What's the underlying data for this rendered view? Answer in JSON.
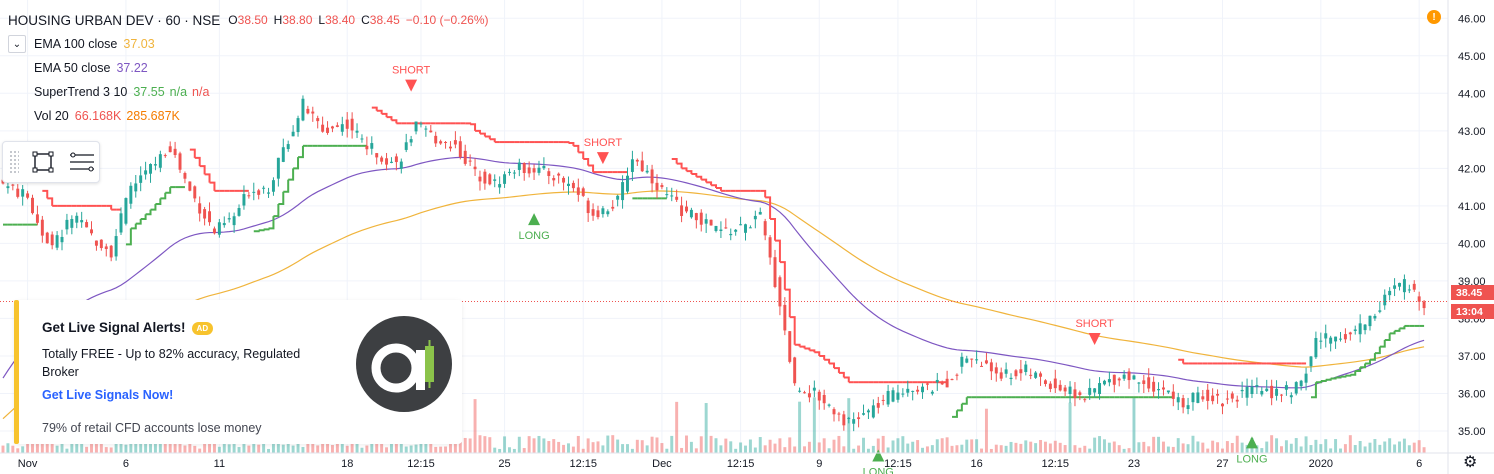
{
  "header": {
    "symbol": "HOUSING URBAN DEV · 60 · NSE",
    "ohlc": [
      {
        "k": "O",
        "v": "38.50"
      },
      {
        "k": "H",
        "v": "38.80"
      },
      {
        "k": "L",
        "v": "38.40"
      },
      {
        "k": "C",
        "v": "38.45"
      }
    ],
    "change": "−0.10 (−0.26%)"
  },
  "indicators": [
    {
      "name": "EMA 100 close",
      "values": [
        "37.03"
      ],
      "colors": [
        "#f0b43c"
      ]
    },
    {
      "name": "EMA 50 close",
      "values": [
        "37.22"
      ],
      "colors": [
        "#7e57c2"
      ]
    },
    {
      "name": "SuperTrend 3 10",
      "values": [
        "37.55",
        "n/a",
        "n/a"
      ],
      "colors": [
        "#4caf50",
        "#4caf50",
        "#ef5350"
      ]
    },
    {
      "name": "Vol 20",
      "values": [
        "66.168K",
        "285.687K"
      ],
      "colors": [
        "#ef5350",
        "#f57c00"
      ]
    }
  ],
  "promo": {
    "title": "Get Live Signal Alerts!",
    "badge": "AD",
    "body": "Totally FREE - Up to 82% accuracy, Regulated Broker",
    "link": "Get Live Signals Now!",
    "disclaimer": "79% of retail CFD accounts lose money"
  },
  "price_tag": {
    "price": "38.45",
    "countdown": "13:04"
  },
  "colors": {
    "up": "#26a69a",
    "down": "#ef5350",
    "ema100": "#f0b43c",
    "ema50": "#7e57c2",
    "st_up": "#4caf50",
    "st_down": "#ff5252"
  },
  "icons": [
    "chevron-down-icon",
    "rectangle-tool-icon",
    "lines-tool-icon",
    "alert-icon",
    "gear-icon",
    "logo-icon"
  ],
  "chart_data": {
    "type": "candlestick",
    "ylim": [
      34.6,
      46.3
    ],
    "y_ticks": [
      "35.00",
      "36.00",
      "37.00",
      "38.00",
      "39.00",
      "40.00",
      "41.00",
      "42.00",
      "43.00",
      "44.00",
      "45.00",
      "46.00"
    ],
    "x_labels": [
      "Nov",
      "6",
      "11",
      "18",
      "12:15",
      "25",
      "12:15",
      "Dec",
      "12:15",
      "9",
      "12:15",
      "16",
      "12:15",
      "23",
      "27",
      "2020",
      "6"
    ],
    "x_label_bar_index": [
      5,
      25,
      44,
      70,
      85,
      102,
      118,
      134,
      150,
      166,
      182,
      198,
      214,
      230,
      248,
      268,
      288
    ],
    "bar_count": 290,
    "close_anchors": [
      [
        0,
        41.6
      ],
      [
        5,
        41.2
      ],
      [
        8,
        40.3
      ],
      [
        10,
        39.9
      ],
      [
        14,
        40.7
      ],
      [
        18,
        40.2
      ],
      [
        22,
        39.8
      ],
      [
        26,
        41.5
      ],
      [
        30,
        42.0
      ],
      [
        34,
        42.6
      ],
      [
        38,
        41.4
      ],
      [
        43,
        40.3
      ],
      [
        47,
        40.7
      ],
      [
        50,
        41.4
      ],
      [
        54,
        41.5
      ],
      [
        58,
        42.8
      ],
      [
        61,
        43.7
      ],
      [
        65,
        43.0
      ],
      [
        70,
        43.2
      ],
      [
        74,
        42.6
      ],
      [
        80,
        42.1
      ],
      [
        84,
        43.1
      ],
      [
        88,
        42.8
      ],
      [
        92,
        42.6
      ],
      [
        96,
        41.9
      ],
      [
        100,
        41.6
      ],
      [
        104,
        42.0
      ],
      [
        108,
        42.0
      ],
      [
        112,
        41.8
      ],
      [
        116,
        41.5
      ],
      [
        120,
        40.8
      ],
      [
        125,
        41.1
      ],
      [
        128,
        42.3
      ],
      [
        131,
        41.9
      ],
      [
        134,
        41.4
      ],
      [
        138,
        40.9
      ],
      [
        142,
        40.6
      ],
      [
        146,
        40.3
      ],
      [
        150,
        40.4
      ],
      [
        154,
        40.7
      ],
      [
        158,
        38.4
      ],
      [
        161,
        36.2
      ],
      [
        165,
        36.0
      ],
      [
        168,
        35.7
      ],
      [
        172,
        35.2
      ],
      [
        176,
        35.5
      ],
      [
        180,
        35.9
      ],
      [
        184,
        36.2
      ],
      [
        188,
        36.1
      ],
      [
        192,
        36.3
      ],
      [
        196,
        37.0
      ],
      [
        200,
        36.7
      ],
      [
        204,
        36.5
      ],
      [
        208,
        36.6
      ],
      [
        212,
        36.3
      ],
      [
        216,
        36.1
      ],
      [
        220,
        35.9
      ],
      [
        224,
        36.3
      ],
      [
        228,
        36.5
      ],
      [
        232,
        36.3
      ],
      [
        236,
        36.1
      ],
      [
        240,
        35.7
      ],
      [
        244,
        36.0
      ],
      [
        248,
        35.8
      ],
      [
        252,
        36.0
      ],
      [
        256,
        36.1
      ],
      [
        260,
        36.0
      ],
      [
        264,
        36.2
      ],
      [
        267,
        37.4
      ],
      [
        270,
        37.5
      ],
      [
        274,
        37.6
      ],
      [
        278,
        38.0
      ],
      [
        282,
        38.7
      ],
      [
        285,
        38.9
      ],
      [
        289,
        38.45
      ]
    ],
    "super_trend": [
      [
        0,
        38.25
      ],
      [
        12,
        38.25
      ],
      [
        13,
        38.6
      ],
      [
        30,
        38.6
      ],
      [
        31,
        40.2
      ],
      [
        57,
        40.2
      ],
      [
        58,
        40.8
      ],
      [
        80,
        40.8
      ],
      [
        81,
        41.0
      ],
      [
        102,
        41.0
      ],
      [
        103,
        41.7
      ],
      [
        115,
        41.7
      ],
      [
        116,
        42.7
      ],
      [
        117,
        42.8
      ],
      [
        118,
        42.7
      ],
      [
        144,
        42.7
      ],
      [
        147,
        42.5
      ],
      [
        150,
        42.0
      ],
      [
        153,
        41.8
      ],
      [
        154,
        41.7
      ],
      [
        155,
        41.8
      ],
      [
        158,
        41.6
      ],
      [
        160,
        41.2
      ],
      [
        161,
        41.6
      ],
      [
        163,
        40.4
      ],
      [
        178,
        40.4
      ],
      [
        180,
        41.4
      ],
      [
        185,
        41.3
      ],
      [
        188,
        41.2
      ],
      [
        193,
        41.0
      ],
      [
        196,
        41.2
      ],
      [
        202,
        40.5
      ],
      [
        205,
        39.6
      ],
      [
        208,
        39.5
      ],
      [
        213,
        38.0
      ],
      [
        217,
        37.4
      ],
      [
        221,
        37.0
      ],
      [
        228,
        36.7
      ],
      [
        286,
        36.7
      ],
      [
        288,
        37.3
      ],
      [
        289,
        38.2
      ],
      [
        291,
        36.3
      ],
      [
        305,
        35.7
      ],
      [
        340,
        35.7
      ],
      [
        341,
        36.3
      ],
      [
        420,
        36.6
      ],
      [
        424,
        36.1
      ],
      [
        428,
        35.7
      ],
      [
        432,
        35.9
      ],
      [
        435,
        36.1
      ],
      [
        440,
        36.6
      ],
      [
        445,
        37.1
      ],
      [
        450,
        37.5
      ],
      [
        455,
        37.6
      ]
    ],
    "signals": [
      {
        "type": "SHORT",
        "bar": 83
      },
      {
        "type": "LONG",
        "bar": 108
      },
      {
        "type": "SHORT",
        "bar": 122
      },
      {
        "type": "LONG",
        "bar": 178
      },
      {
        "type": "SHORT",
        "bar": 222
      },
      {
        "type": "LONG",
        "bar": 254
      }
    ],
    "last_price": 38.45
  }
}
